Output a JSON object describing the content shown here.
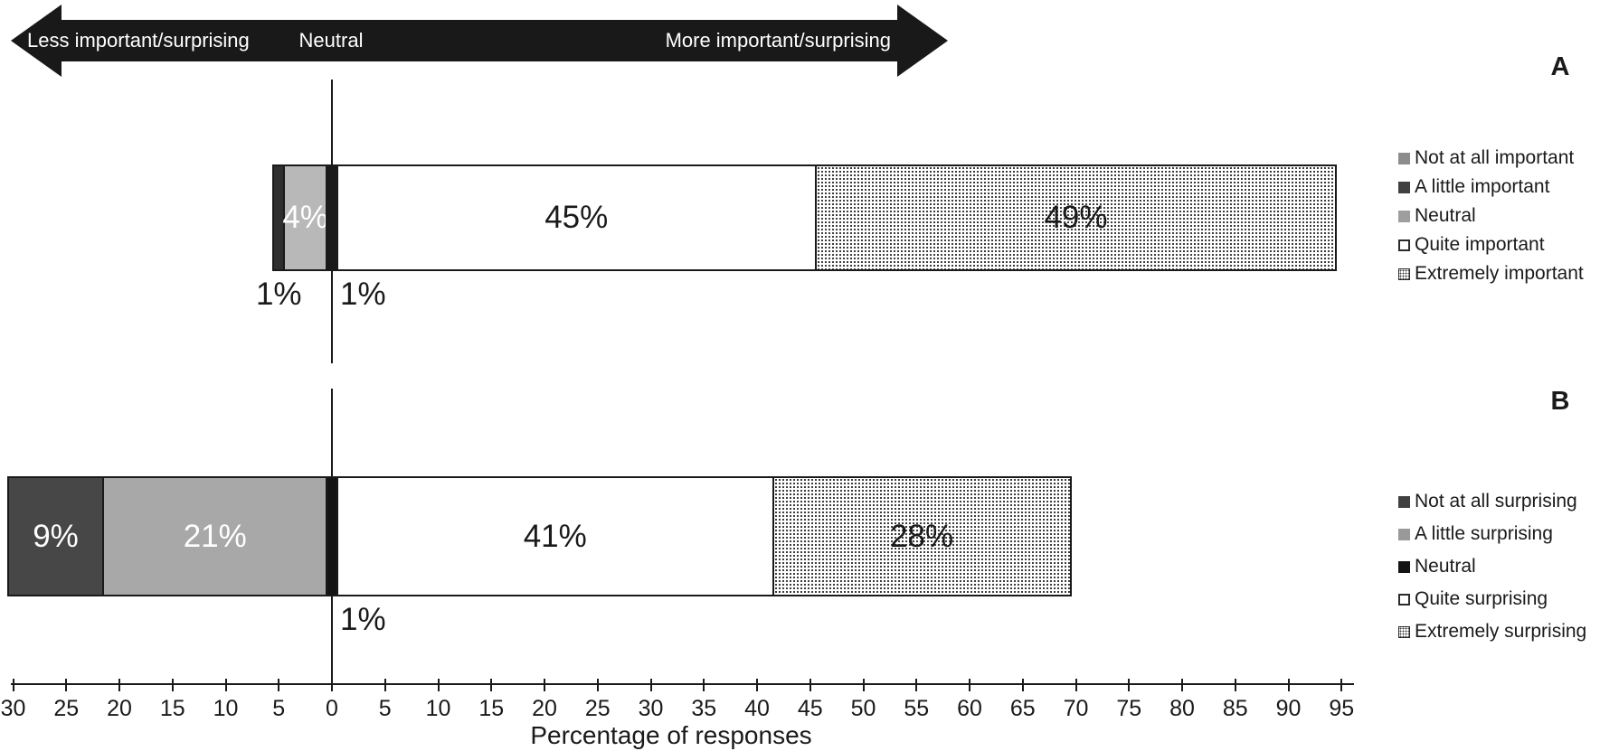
{
  "arrow": {
    "left_label": "Less important/surprising",
    "center_label": "Neutral",
    "right_label": "More important/surprising"
  },
  "panel_tags": {
    "a": "A",
    "b": "B"
  },
  "chart_data": {
    "type": "bar",
    "variant": "horizontal-diverging-stacked",
    "title": "",
    "xlabel": "Percentage of responses",
    "x_axis": {
      "min": -30,
      "max": 95,
      "tick_step": 5,
      "tick_labels": [
        "30",
        "25",
        "20",
        "15",
        "10",
        "5",
        "0",
        "5",
        "10",
        "15",
        "20",
        "25",
        "30",
        "35",
        "40",
        "45",
        "50",
        "55",
        "60",
        "65",
        "70",
        "75",
        "80",
        "85",
        "90",
        "95"
      ],
      "note": "left of zero shows percentages as absolute values"
    },
    "panels": [
      {
        "id": "A",
        "segments": [
          {
            "category": "Not at all important",
            "value": 1,
            "label": "1%",
            "fill": "#2f2f2f",
            "label_placement": "below",
            "label_color": "#1a1a1a"
          },
          {
            "category": "A little important",
            "value": 4,
            "label": "4%",
            "fill": "#b8b8b8",
            "label_placement": "inside",
            "label_color": "#ffffff"
          },
          {
            "category": "Neutral",
            "value": 1,
            "label": "1%",
            "fill": "#1a1a1a",
            "label_placement": "below-right",
            "label_color": "#1a1a1a"
          },
          {
            "category": "Quite important",
            "value": 45,
            "label": "45%",
            "fill": "#ffffff",
            "label_placement": "inside",
            "label_color": "#1a1a1a"
          },
          {
            "category": "Extremely important",
            "value": 49,
            "label": "49%",
            "fill": "dotted",
            "label_placement": "inside",
            "label_color": "#1a1a1a"
          }
        ],
        "legend": [
          {
            "label": "Not at all important",
            "swatch": "#8c8c8c"
          },
          {
            "label": "A little important",
            "swatch": "#404040"
          },
          {
            "label": "Neutral",
            "swatch": "#9e9e9e"
          },
          {
            "label": "Quite important",
            "swatch": "outline"
          },
          {
            "label": "Extremely important",
            "swatch": "dotted"
          }
        ]
      },
      {
        "id": "B",
        "segments": [
          {
            "category": "Not at all surprising",
            "value": 9,
            "label": "9%",
            "fill": "#474747",
            "label_placement": "inside",
            "label_color": "#ffffff"
          },
          {
            "category": "A little surprising",
            "value": 21,
            "label": "21%",
            "fill": "#a8a8a8",
            "label_placement": "inside",
            "label_color": "#ffffff"
          },
          {
            "category": "Neutral",
            "value": 1,
            "label": "1%",
            "fill": "#141414",
            "label_placement": "below-right",
            "label_color": "#1a1a1a"
          },
          {
            "category": "Quite surprising",
            "value": 41,
            "label": "41%",
            "fill": "#ffffff",
            "label_placement": "inside",
            "label_color": "#1a1a1a"
          },
          {
            "category": "Extremely surprising",
            "value": 28,
            "label": "28%",
            "fill": "dotted",
            "label_placement": "inside",
            "label_color": "#1a1a1a"
          }
        ],
        "legend": [
          {
            "label": "Not at all surprising",
            "swatch": "#404040"
          },
          {
            "label": "A little surprising",
            "swatch": "#999999"
          },
          {
            "label": "Neutral",
            "swatch": "#141414"
          },
          {
            "label": "Quite surprising",
            "swatch": "outline"
          },
          {
            "label": "Extremely surprising",
            "swatch": "dotted"
          }
        ]
      }
    ]
  }
}
